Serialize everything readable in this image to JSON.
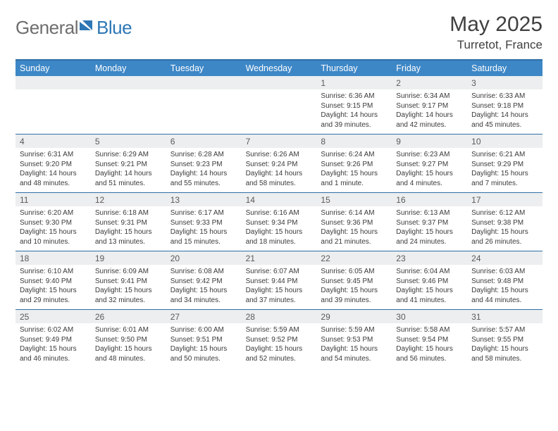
{
  "brand": {
    "text1": "General",
    "text2": "Blue"
  },
  "colors": {
    "header_bg": "#3d87c7",
    "rule": "#2f6fa7",
    "strip": "#eceeef",
    "text": "#3a3a3a",
    "title": "#404040",
    "logo_text": "#6e6e6e",
    "logo_mark": "#2e77b5"
  },
  "title": "May 2025",
  "location": "Turretot, France",
  "days_of_week": [
    "Sunday",
    "Monday",
    "Tuesday",
    "Wednesday",
    "Thursday",
    "Friday",
    "Saturday"
  ],
  "weeks": [
    [
      {
        "n": "",
        "sunrise": "",
        "sunset": "",
        "daylight": ""
      },
      {
        "n": "",
        "sunrise": "",
        "sunset": "",
        "daylight": ""
      },
      {
        "n": "",
        "sunrise": "",
        "sunset": "",
        "daylight": ""
      },
      {
        "n": "",
        "sunrise": "",
        "sunset": "",
        "daylight": ""
      },
      {
        "n": "1",
        "sunrise": "6:36 AM",
        "sunset": "9:15 PM",
        "daylight": "14 hours and 39 minutes."
      },
      {
        "n": "2",
        "sunrise": "6:34 AM",
        "sunset": "9:17 PM",
        "daylight": "14 hours and 42 minutes."
      },
      {
        "n": "3",
        "sunrise": "6:33 AM",
        "sunset": "9:18 PM",
        "daylight": "14 hours and 45 minutes."
      }
    ],
    [
      {
        "n": "4",
        "sunrise": "6:31 AM",
        "sunset": "9:20 PM",
        "daylight": "14 hours and 48 minutes."
      },
      {
        "n": "5",
        "sunrise": "6:29 AM",
        "sunset": "9:21 PM",
        "daylight": "14 hours and 51 minutes."
      },
      {
        "n": "6",
        "sunrise": "6:28 AM",
        "sunset": "9:23 PM",
        "daylight": "14 hours and 55 minutes."
      },
      {
        "n": "7",
        "sunrise": "6:26 AM",
        "sunset": "9:24 PM",
        "daylight": "14 hours and 58 minutes."
      },
      {
        "n": "8",
        "sunrise": "6:24 AM",
        "sunset": "9:26 PM",
        "daylight": "15 hours and 1 minute."
      },
      {
        "n": "9",
        "sunrise": "6:23 AM",
        "sunset": "9:27 PM",
        "daylight": "15 hours and 4 minutes."
      },
      {
        "n": "10",
        "sunrise": "6:21 AM",
        "sunset": "9:29 PM",
        "daylight": "15 hours and 7 minutes."
      }
    ],
    [
      {
        "n": "11",
        "sunrise": "6:20 AM",
        "sunset": "9:30 PM",
        "daylight": "15 hours and 10 minutes."
      },
      {
        "n": "12",
        "sunrise": "6:18 AM",
        "sunset": "9:31 PM",
        "daylight": "15 hours and 13 minutes."
      },
      {
        "n": "13",
        "sunrise": "6:17 AM",
        "sunset": "9:33 PM",
        "daylight": "15 hours and 15 minutes."
      },
      {
        "n": "14",
        "sunrise": "6:16 AM",
        "sunset": "9:34 PM",
        "daylight": "15 hours and 18 minutes."
      },
      {
        "n": "15",
        "sunrise": "6:14 AM",
        "sunset": "9:36 PM",
        "daylight": "15 hours and 21 minutes."
      },
      {
        "n": "16",
        "sunrise": "6:13 AM",
        "sunset": "9:37 PM",
        "daylight": "15 hours and 24 minutes."
      },
      {
        "n": "17",
        "sunrise": "6:12 AM",
        "sunset": "9:38 PM",
        "daylight": "15 hours and 26 minutes."
      }
    ],
    [
      {
        "n": "18",
        "sunrise": "6:10 AM",
        "sunset": "9:40 PM",
        "daylight": "15 hours and 29 minutes."
      },
      {
        "n": "19",
        "sunrise": "6:09 AM",
        "sunset": "9:41 PM",
        "daylight": "15 hours and 32 minutes."
      },
      {
        "n": "20",
        "sunrise": "6:08 AM",
        "sunset": "9:42 PM",
        "daylight": "15 hours and 34 minutes."
      },
      {
        "n": "21",
        "sunrise": "6:07 AM",
        "sunset": "9:44 PM",
        "daylight": "15 hours and 37 minutes."
      },
      {
        "n": "22",
        "sunrise": "6:05 AM",
        "sunset": "9:45 PM",
        "daylight": "15 hours and 39 minutes."
      },
      {
        "n": "23",
        "sunrise": "6:04 AM",
        "sunset": "9:46 PM",
        "daylight": "15 hours and 41 minutes."
      },
      {
        "n": "24",
        "sunrise": "6:03 AM",
        "sunset": "9:48 PM",
        "daylight": "15 hours and 44 minutes."
      }
    ],
    [
      {
        "n": "25",
        "sunrise": "6:02 AM",
        "sunset": "9:49 PM",
        "daylight": "15 hours and 46 minutes."
      },
      {
        "n": "26",
        "sunrise": "6:01 AM",
        "sunset": "9:50 PM",
        "daylight": "15 hours and 48 minutes."
      },
      {
        "n": "27",
        "sunrise": "6:00 AM",
        "sunset": "9:51 PM",
        "daylight": "15 hours and 50 minutes."
      },
      {
        "n": "28",
        "sunrise": "5:59 AM",
        "sunset": "9:52 PM",
        "daylight": "15 hours and 52 minutes."
      },
      {
        "n": "29",
        "sunrise": "5:59 AM",
        "sunset": "9:53 PM",
        "daylight": "15 hours and 54 minutes."
      },
      {
        "n": "30",
        "sunrise": "5:58 AM",
        "sunset": "9:54 PM",
        "daylight": "15 hours and 56 minutes."
      },
      {
        "n": "31",
        "sunrise": "5:57 AM",
        "sunset": "9:55 PM",
        "daylight": "15 hours and 58 minutes."
      }
    ]
  ],
  "labels": {
    "sunrise": "Sunrise: ",
    "sunset": "Sunset: ",
    "daylight": "Daylight: "
  }
}
